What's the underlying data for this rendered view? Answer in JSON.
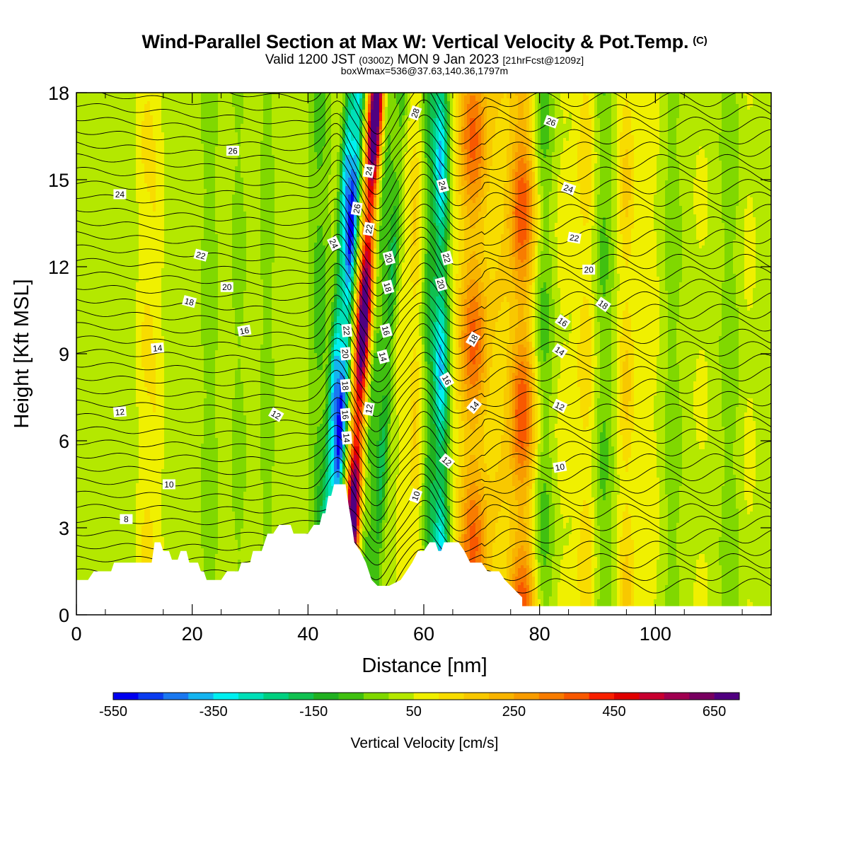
{
  "header": {
    "title": "Wind-Parallel Section at Max W: Vertical Velocity & Pot.Temp.",
    "title_mark": "(C)",
    "valid_line_a": "Valid 1200 JST",
    "valid_line_b": "(0300Z)",
    "valid_line_c": "MON 9 Jan 2023",
    "valid_line_d": "[21hrFcst@1209z]",
    "box_line": "boxWmax=536@37.63,140.36,1797m"
  },
  "chart_data": {
    "type": "heatmap",
    "xlabel": "Distance [nm]",
    "ylabel": "Height [Kft MSL]",
    "xlim": [
      0,
      120
    ],
    "ylim": [
      0,
      18
    ],
    "x_ticks": [
      0,
      20,
      40,
      60,
      80,
      100
    ],
    "y_ticks": [
      0,
      3,
      6,
      9,
      12,
      15,
      18
    ],
    "colorbar": {
      "title": "Vertical Velocity [cm/s]",
      "min": -550,
      "max": 700,
      "step": 50,
      "tick_labels": [
        -550,
        -350,
        -150,
        50,
        250,
        450,
        650
      ],
      "colors": [
        "#0000f0",
        "#0a3cf0",
        "#1a78f0",
        "#14b4f0",
        "#00f0f0",
        "#00e0b8",
        "#00d080",
        "#10c050",
        "#20b020",
        "#40c010",
        "#80d800",
        "#b4e800",
        "#f0f000",
        "#f8dc00",
        "#f8c800",
        "#f8b400",
        "#f89c00",
        "#f87c00",
        "#f85800",
        "#f82000",
        "#e00000",
        "#c80030",
        "#a00050",
        "#780060",
        "#500080"
      ]
    },
    "terrain": [
      [
        0,
        1.2
      ],
      [
        2,
        1.2
      ],
      [
        3,
        1.5
      ],
      [
        6,
        1.5
      ],
      [
        6.5,
        1.8
      ],
      [
        13,
        1.8
      ],
      [
        13.5,
        2.5
      ],
      [
        14.5,
        2.5
      ],
      [
        15,
        2.2
      ],
      [
        16,
        2.2
      ],
      [
        16.5,
        1.9
      ],
      [
        17.5,
        1.9
      ],
      [
        18,
        2.2
      ],
      [
        19,
        2.2
      ],
      [
        19.5,
        1.8
      ],
      [
        21,
        1.8
      ],
      [
        21.5,
        1.5
      ],
      [
        22,
        1.5
      ],
      [
        22.5,
        1.2
      ],
      [
        25,
        1.2
      ],
      [
        26,
        1.5
      ],
      [
        28,
        1.5
      ],
      [
        28.5,
        1.8
      ],
      [
        30,
        1.8
      ],
      [
        30.5,
        2.2
      ],
      [
        32,
        2.2
      ],
      [
        33,
        2.8
      ],
      [
        34,
        2.8
      ],
      [
        35,
        3.1
      ],
      [
        37,
        3.1
      ],
      [
        37.5,
        2.8
      ],
      [
        40,
        2.8
      ],
      [
        41,
        3.1
      ],
      [
        42,
        3.1
      ],
      [
        42.5,
        3.5
      ],
      [
        43,
        3.5
      ],
      [
        43.5,
        4.1
      ],
      [
        44,
        4.1
      ],
      [
        44.5,
        4.5
      ],
      [
        46.5,
        4.5
      ],
      [
        47,
        3.8
      ],
      [
        47.5,
        3.2
      ],
      [
        48,
        2.5
      ],
      [
        49,
        2.2
      ],
      [
        50,
        1.8
      ],
      [
        51,
        1.2
      ],
      [
        52,
        1.0
      ],
      [
        54,
        1.0
      ],
      [
        56,
        1.2
      ],
      [
        57,
        1.5
      ],
      [
        58,
        1.8
      ],
      [
        59,
        2.2
      ],
      [
        60,
        2.2
      ],
      [
        61,
        2.5
      ],
      [
        62,
        2.5
      ],
      [
        62.5,
        2.2
      ],
      [
        63,
        2.2
      ],
      [
        63.5,
        2.5
      ],
      [
        66,
        2.5
      ],
      [
        67,
        2.2
      ],
      [
        68,
        1.8
      ],
      [
        70,
        1.8
      ],
      [
        71,
        1.5
      ],
      [
        73,
        1.5
      ],
      [
        74,
        1.2
      ],
      [
        75,
        1.0
      ],
      [
        76,
        0.8
      ],
      [
        77,
        0.6
      ],
      [
        77,
        0.3
      ],
      [
        120,
        0.3
      ]
    ],
    "theta_labels": [
      {
        "text": "8",
        "x": 8.6,
        "y": 3.3,
        "rot": 0
      },
      {
        "text": "10",
        "x": 16,
        "y": 4.5,
        "rot": 0
      },
      {
        "text": "12",
        "x": 7.5,
        "y": 7.0,
        "rot": -5
      },
      {
        "text": "14",
        "x": 14,
        "y": 9.2,
        "rot": -5
      },
      {
        "text": "16",
        "x": 29,
        "y": 9.8,
        "rot": -10
      },
      {
        "text": "18",
        "x": 19.5,
        "y": 10.8,
        "rot": 15
      },
      {
        "text": "20",
        "x": 26,
        "y": 11.3,
        "rot": 0
      },
      {
        "text": "22",
        "x": 21.5,
        "y": 12.4,
        "rot": 15
      },
      {
        "text": "24",
        "x": 7.5,
        "y": 14.5,
        "rot": 0
      },
      {
        "text": "26",
        "x": 27,
        "y": 16.0,
        "rot": 0
      },
      {
        "text": "12",
        "x": 34.5,
        "y": 6.9,
        "rot": 30
      },
      {
        "text": "24",
        "x": 44.5,
        "y": 12.8,
        "rot": 65
      },
      {
        "text": "22",
        "x": 46.7,
        "y": 9.8,
        "rot": 85
      },
      {
        "text": "20",
        "x": 46.5,
        "y": 9.0,
        "rot": 85
      },
      {
        "text": "18",
        "x": 46.5,
        "y": 7.9,
        "rot": 85
      },
      {
        "text": "16",
        "x": 46.5,
        "y": 6.9,
        "rot": 85
      },
      {
        "text": "14",
        "x": 46.7,
        "y": 6.1,
        "rot": 85
      },
      {
        "text": "26",
        "x": 48.4,
        "y": 14.0,
        "rot": -80
      },
      {
        "text": "24",
        "x": 50.5,
        "y": 15.3,
        "rot": -80
      },
      {
        "text": "22",
        "x": 50.5,
        "y": 13.3,
        "rot": -80
      },
      {
        "text": "12",
        "x": 50.5,
        "y": 7.1,
        "rot": -80
      },
      {
        "text": "28",
        "x": 58.5,
        "y": 17.3,
        "rot": -70
      },
      {
        "text": "20",
        "x": 54,
        "y": 12.3,
        "rot": 75
      },
      {
        "text": "18",
        "x": 53.8,
        "y": 11.3,
        "rot": 75
      },
      {
        "text": "16",
        "x": 53.5,
        "y": 9.8,
        "rot": 75
      },
      {
        "text": "14",
        "x": 53,
        "y": 8.9,
        "rot": 75
      },
      {
        "text": "10",
        "x": 58.6,
        "y": 4.1,
        "rot": -70
      },
      {
        "text": "24",
        "x": 63.3,
        "y": 14.8,
        "rot": 75
      },
      {
        "text": "22",
        "x": 64,
        "y": 12.3,
        "rot": 75
      },
      {
        "text": "20",
        "x": 63,
        "y": 11.4,
        "rot": 75
      },
      {
        "text": "18",
        "x": 68.5,
        "y": 9.5,
        "rot": -60
      },
      {
        "text": "16",
        "x": 64,
        "y": 8.1,
        "rot": 60
      },
      {
        "text": "14",
        "x": 68.7,
        "y": 7.2,
        "rot": -50
      },
      {
        "text": "12",
        "x": 64,
        "y": 5.3,
        "rot": 40
      },
      {
        "text": "26",
        "x": 82,
        "y": 17.0,
        "rot": 20
      },
      {
        "text": "24",
        "x": 85,
        "y": 14.7,
        "rot": 20
      },
      {
        "text": "22",
        "x": 86,
        "y": 13.0,
        "rot": 10
      },
      {
        "text": "20",
        "x": 88.5,
        "y": 11.9,
        "rot": 0
      },
      {
        "text": "18",
        "x": 91,
        "y": 10.7,
        "rot": 35
      },
      {
        "text": "16",
        "x": 84,
        "y": 10.1,
        "rot": 35
      },
      {
        "text": "14",
        "x": 83.5,
        "y": 9.1,
        "rot": 35
      },
      {
        "text": "12",
        "x": 83.5,
        "y": 7.2,
        "rot": 25
      },
      {
        "text": "10",
        "x": 83.5,
        "y": 5.1,
        "rot": -10
      }
    ]
  }
}
